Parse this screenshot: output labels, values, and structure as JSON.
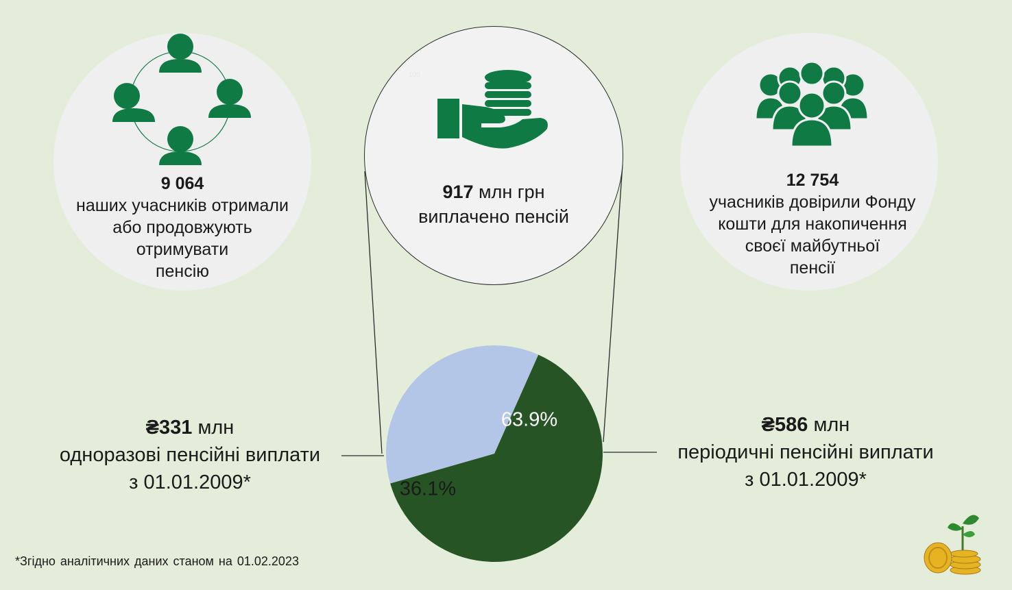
{
  "stats": {
    "left": {
      "number": "9 064",
      "line1": "наших учасників отримали",
      "line2": "або продовжують",
      "line3": "отримувати",
      "line4": "пенсію"
    },
    "middle": {
      "number": "917",
      "unit": " млн грн",
      "line2": "виплачено пенсій",
      "faint_mark": "100"
    },
    "right": {
      "number": "12 754",
      "line1": "учасників довірили Фонду",
      "line2": "кошти для накопичення",
      "line3": "своєї майбутньої",
      "line4": "пенсії"
    }
  },
  "side_labels": {
    "left": {
      "amount": "₴331",
      "unit": " млн",
      "line2": "одноразові  пенсійні виплати",
      "line3": "з 01.01.2009*"
    },
    "right": {
      "amount": "₴586",
      "unit": " млн",
      "line2": "періодичні пенсійні виплати",
      "line3": "з 01.01.2009*"
    }
  },
  "footnote": "*Згідно аналітичних  даних станом на 01.02.2023",
  "icons": {
    "left": "people-circle-icon",
    "middle": "coins-in-hand-icon",
    "right": "group-crowd-icon",
    "corner": "coins-sprout-icon"
  },
  "colors": {
    "background": "#e4edda",
    "icon_green": "#0f7a43",
    "pie_dark": "#275424",
    "pie_light": "#b4c6e7"
  },
  "chart_data": {
    "type": "pie",
    "slices": [
      {
        "label": "63.9%",
        "value": 63.9,
        "color": "#275424"
      },
      {
        "label": "36.1%",
        "value": 36.1,
        "color": "#b4c6e7"
      }
    ]
  }
}
